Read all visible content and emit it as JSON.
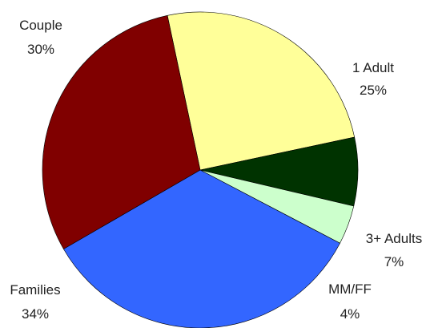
{
  "chart_data": {
    "type": "pie",
    "title": "",
    "slices": [
      {
        "label": "1 Adult",
        "value": 25,
        "display": "25%",
        "color": "#ffff99"
      },
      {
        "label": "3+ Adults",
        "value": 7,
        "display": "7%",
        "color": "#003300"
      },
      {
        "label": "MM/FF",
        "value": 4,
        "display": "4%",
        "color": "#ccffcc"
      },
      {
        "label": "Families",
        "value": 34,
        "display": "34%",
        "color": "#3366ff"
      },
      {
        "label": "Couple",
        "value": 30,
        "display": "30%",
        "color": "#800000"
      }
    ],
    "start_angle_deg": -12,
    "direction": "clockwise",
    "legend": "none",
    "labels": "outside"
  }
}
